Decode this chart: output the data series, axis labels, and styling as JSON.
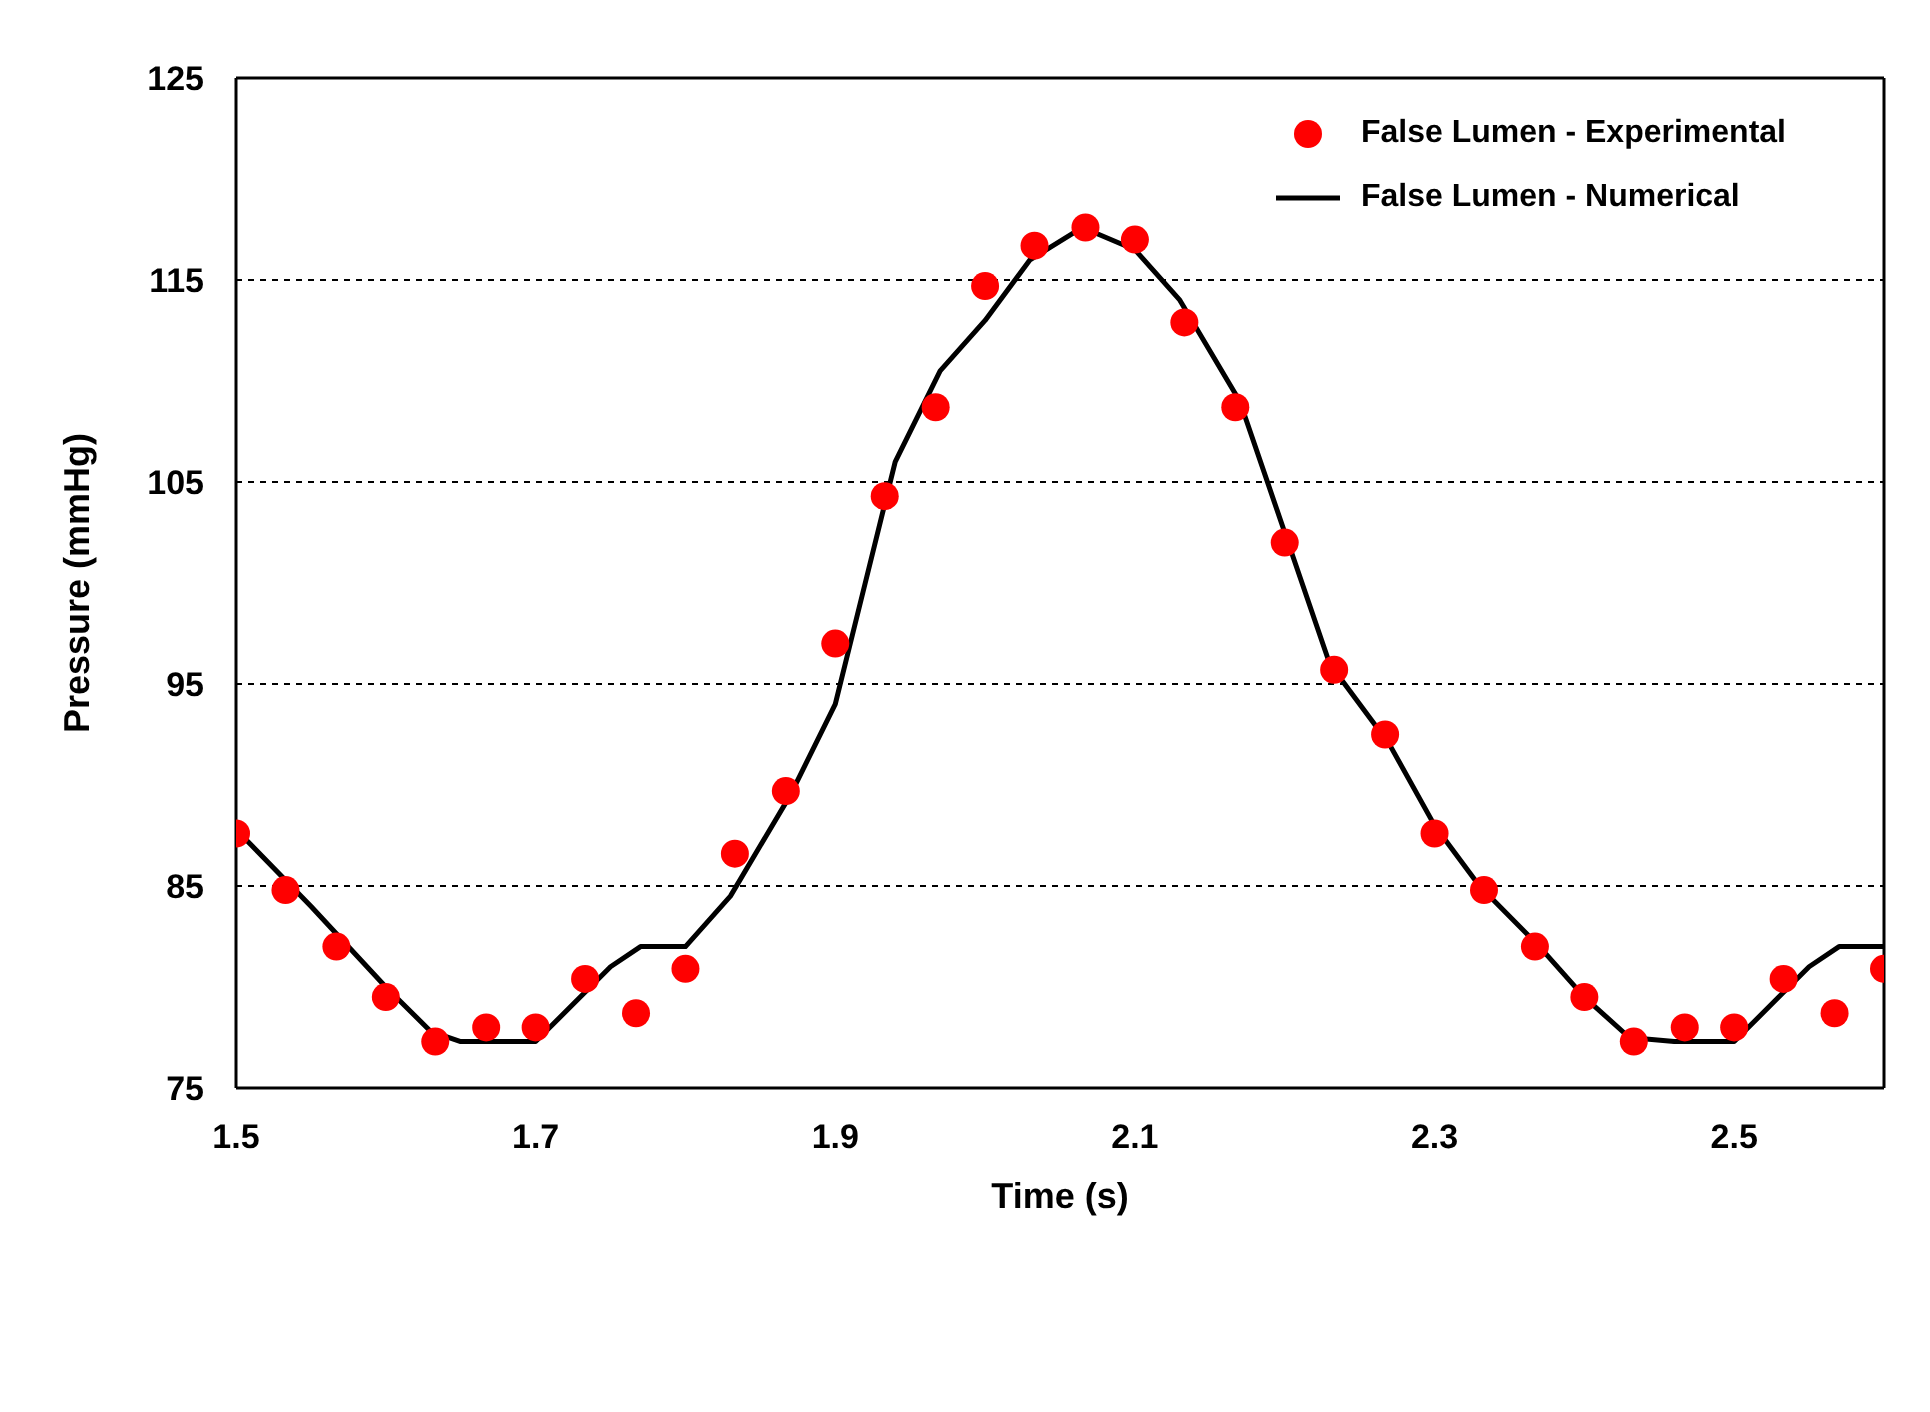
{
  "chart_data": {
    "type": "scatter",
    "xlabel": "Time (s)",
    "ylabel": "Pressure (mmHg)",
    "xlim": [
      1.5,
      2.6
    ],
    "xticks": [
      1.5,
      1.7,
      1.9,
      2.1,
      2.3,
      2.5
    ],
    "ylim": [
      75,
      125
    ],
    "yticks": [
      75,
      85,
      95,
      105,
      115,
      125
    ],
    "grid": "y",
    "legend": "top right",
    "series": [
      {
        "name": "False Lumen - Experimental",
        "marker": "circle",
        "color": "#ff0000",
        "x": [
          1.5,
          1.533,
          1.567,
          1.6,
          1.633,
          1.667,
          1.7,
          1.733,
          1.767,
          1.8,
          1.833,
          1.867,
          1.9,
          1.933,
          1.967,
          2.0,
          2.033,
          2.067,
          2.1,
          2.133,
          2.167,
          2.2,
          2.233,
          2.267,
          2.3,
          2.333,
          2.367,
          2.4,
          2.433,
          2.467,
          2.5,
          2.533,
          2.567,
          2.6
        ],
        "values": [
          87.6,
          84.8,
          82.0,
          79.5,
          77.3,
          78.0,
          78.0,
          80.4,
          78.7,
          80.9,
          86.6,
          89.7,
          97.0,
          104.3,
          108.7,
          114.7,
          116.7,
          117.6,
          117.0,
          112.9,
          108.7,
          102.0,
          95.7,
          92.5,
          87.6,
          84.8,
          82.0,
          79.5,
          77.3,
          78.0,
          78.0,
          80.4,
          78.7,
          80.9
        ]
      },
      {
        "name": "False Lumen - Numerical",
        "type": "line",
        "marker": "none",
        "line_style": "solid",
        "color": "#000000",
        "x": [
          1.5,
          1.55,
          1.6,
          1.63,
          1.65,
          1.7,
          1.75,
          1.77,
          1.8,
          1.83,
          1.87,
          1.9,
          1.92,
          1.94,
          1.97,
          2.0,
          2.03,
          2.065,
          2.1,
          2.13,
          2.17,
          2.2,
          2.23,
          2.27,
          2.3,
          2.33,
          2.37,
          2.4,
          2.43,
          2.46,
          2.5,
          2.55,
          2.57,
          2.6
        ],
        "values": [
          87.8,
          84.0,
          80.0,
          77.8,
          77.3,
          77.3,
          81.0,
          82.0,
          82.0,
          84.5,
          89.5,
          94.0,
          100.0,
          106.0,
          110.5,
          113.0,
          116.0,
          117.6,
          116.5,
          114.0,
          109.0,
          102.5,
          96.0,
          92.0,
          88.0,
          85.0,
          82.0,
          79.5,
          77.5,
          77.3,
          77.3,
          81.0,
          82.0,
          82.0
        ]
      }
    ]
  }
}
